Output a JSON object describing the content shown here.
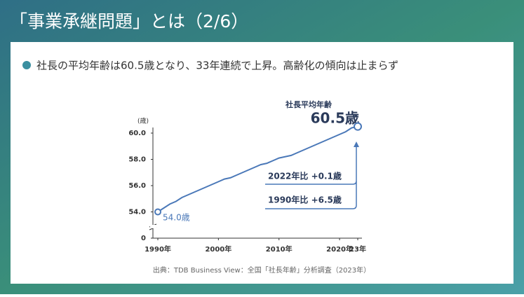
{
  "title": "「事業承継問題」とは（2/6）",
  "bullet": "社長の平均年齢は60.5歳となり、33年連続で上昇。高齢化の傾向は止まらず",
  "chart_data": {
    "type": "line",
    "y_unit": "(歳)",
    "x": [
      1990,
      1991,
      1992,
      1993,
      1994,
      1995,
      1996,
      1997,
      1998,
      1999,
      2000,
      2001,
      2002,
      2003,
      2004,
      2005,
      2006,
      2007,
      2008,
      2009,
      2010,
      2011,
      2012,
      2013,
      2014,
      2015,
      2016,
      2017,
      2018,
      2019,
      2020,
      2021,
      2022,
      2023
    ],
    "series": [
      {
        "name": "社長平均年齢",
        "color": "#4a78b8",
        "values": [
          54.0,
          54.3,
          54.6,
          54.8,
          55.1,
          55.3,
          55.5,
          55.7,
          55.9,
          56.1,
          56.3,
          56.5,
          56.6,
          56.8,
          57.0,
          57.2,
          57.4,
          57.6,
          57.7,
          57.9,
          58.1,
          58.2,
          58.3,
          58.5,
          58.7,
          58.9,
          59.1,
          59.3,
          59.5,
          59.7,
          59.9,
          60.1,
          60.4,
          60.5
        ]
      }
    ],
    "xlim": [
      1990,
      2023
    ],
    "xticks": [
      {
        "value": 1990,
        "label": "1990年"
      },
      {
        "value": 2000,
        "label": "2000年"
      },
      {
        "value": 2010,
        "label": "2010年"
      },
      {
        "value": 2020,
        "label": "2020年"
      },
      {
        "value": 2023,
        "label": "23年"
      }
    ],
    "ylim": [
      52,
      60
    ],
    "yticks": [
      0,
      {
        "value": 54,
        "label": "54.0"
      },
      {
        "value": 56,
        "label": "56.0"
      },
      {
        "value": 58,
        "label": "58.0"
      },
      {
        "value": 60,
        "label": "60.0"
      }
    ],
    "axis_break": true,
    "annotations": {
      "series_label": "社長平均年齢",
      "end_label": "60.5歳",
      "start_label": "54.0歳",
      "change_2022": "2022年比 +0.1歳",
      "change_1990": "1990年比 +6.5歳"
    },
    "source": "出典：TDB Business View：全国「社長年齢」分析調査（2023年）"
  }
}
